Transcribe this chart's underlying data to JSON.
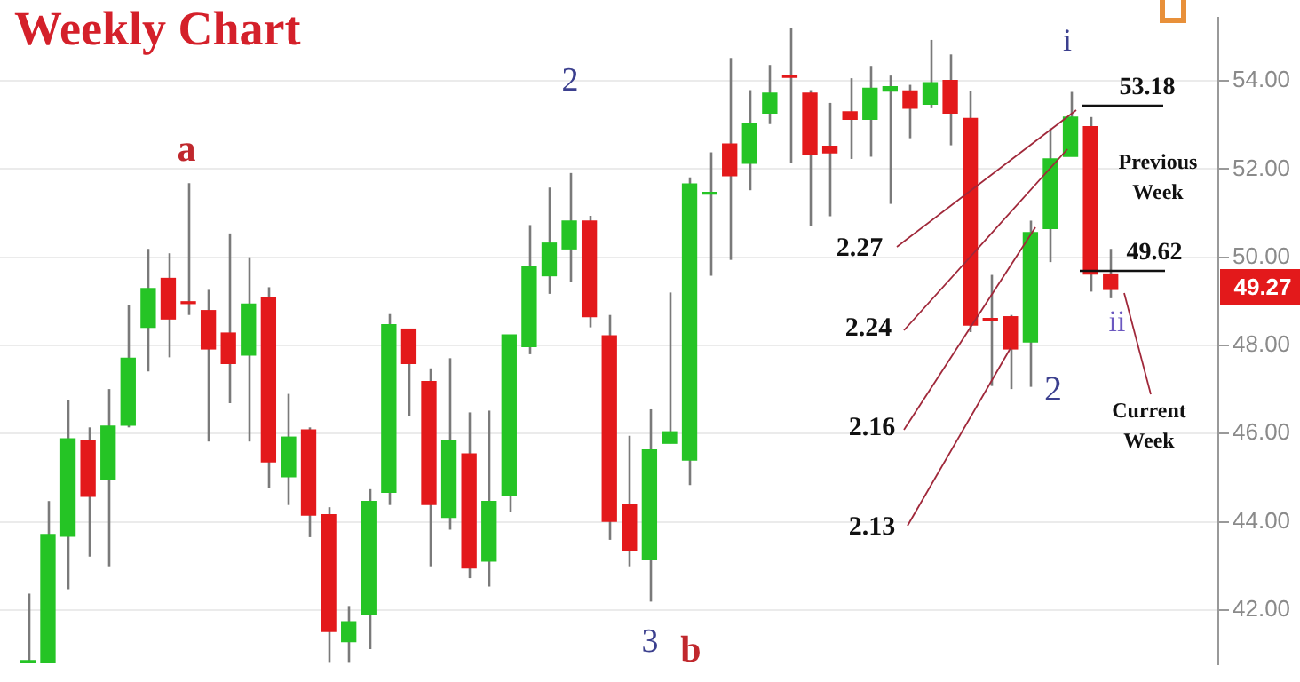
{
  "chart_data": {
    "type": "candlestick",
    "title": "Weekly Chart",
    "categories": [
      null,
      null,
      null,
      null,
      null,
      null,
      null,
      null,
      null,
      null,
      null,
      null,
      null,
      null,
      null,
      null,
      null,
      null,
      null,
      null,
      null,
      null,
      null,
      null,
      null,
      null,
      null,
      null,
      null,
      null,
      null,
      null,
      null,
      null,
      null,
      null,
      null,
      null,
      null,
      null,
      null,
      null,
      null,
      null,
      null,
      null,
      null,
      null,
      null,
      null,
      null,
      null,
      null,
      null,
      null
    ],
    "ohlc": [
      [
        40.8,
        42.37,
        40.8,
        40.85
      ],
      [
        40.8,
        44.47,
        40.8,
        43.71
      ],
      [
        43.67,
        46.75,
        42.47,
        45.88
      ],
      [
        45.85,
        46.14,
        43.21,
        44.58
      ],
      [
        44.97,
        47.01,
        42.99,
        46.17
      ],
      [
        46.19,
        48.92,
        46.14,
        47.71
      ],
      [
        48.41,
        50.19,
        47.41,
        49.29
      ],
      [
        49.52,
        50.09,
        47.73,
        48.6
      ],
      [
        48.99,
        51.68,
        48.69,
        48.95
      ],
      [
        48.79,
        49.26,
        45.82,
        47.92
      ],
      [
        48.28,
        50.54,
        46.69,
        47.59
      ],
      [
        47.78,
        50.0,
        45.82,
        48.94
      ],
      [
        49.09,
        49.32,
        44.76,
        45.36
      ],
      [
        45.02,
        46.9,
        44.38,
        45.92
      ],
      [
        46.08,
        46.14,
        43.65,
        44.15
      ],
      [
        44.16,
        44.33,
        40.8,
        41.51
      ],
      [
        41.28,
        42.09,
        40.8,
        41.73
      ],
      [
        41.91,
        44.74,
        41.11,
        44.46
      ],
      [
        44.67,
        48.71,
        44.38,
        48.47
      ],
      [
        48.37,
        48.37,
        46.39,
        47.59
      ],
      [
        47.18,
        47.48,
        42.99,
        44.39
      ],
      [
        44.1,
        47.71,
        43.82,
        45.83
      ],
      [
        45.54,
        46.48,
        42.72,
        42.95
      ],
      [
        43.11,
        46.52,
        42.53,
        44.46
      ],
      [
        44.6,
        48.24,
        44.23,
        48.24
      ],
      [
        47.97,
        50.73,
        47.8,
        49.8
      ],
      [
        49.58,
        51.58,
        49.17,
        50.32
      ],
      [
        50.19,
        51.91,
        49.45,
        50.82
      ],
      [
        50.82,
        50.94,
        48.41,
        48.65
      ],
      [
        48.22,
        48.69,
        43.59,
        44.01
      ],
      [
        44.39,
        45.95,
        42.99,
        43.34
      ],
      [
        43.14,
        46.55,
        42.19,
        45.63
      ],
      [
        45.78,
        49.2,
        45.78,
        46.04
      ],
      [
        45.4,
        51.81,
        44.83,
        51.66
      ],
      [
        51.43,
        52.38,
        49.58,
        51.47
      ],
      [
        52.57,
        54.52,
        49.94,
        51.85
      ],
      [
        52.13,
        53.79,
        51.52,
        53.02
      ],
      [
        53.27,
        54.36,
        53.02,
        53.72
      ],
      [
        54.12,
        55.21,
        52.13,
        54.08
      ],
      [
        53.72,
        53.79,
        50.7,
        52.33
      ],
      [
        52.52,
        53.5,
        50.93,
        52.37
      ],
      [
        53.3,
        54.06,
        52.23,
        53.13
      ],
      [
        53.13,
        54.34,
        52.28,
        53.83
      ],
      [
        53.77,
        54.12,
        51.21,
        53.87
      ],
      [
        53.77,
        53.91,
        52.7,
        53.38
      ],
      [
        53.47,
        54.93,
        53.38,
        53.96
      ],
      [
        54.01,
        54.6,
        52.54,
        53.27
      ],
      [
        53.15,
        53.78,
        48.3,
        48.46
      ],
      [
        48.61,
        49.6,
        47.08,
        48.57
      ],
      [
        48.65,
        48.69,
        47.01,
        47.92
      ],
      [
        48.08,
        50.83,
        47.06,
        50.56
      ],
      [
        50.65,
        52.92,
        49.89,
        52.23
      ],
      [
        52.29,
        53.75,
        52.29,
        53.18
      ],
      [
        52.96,
        53.18,
        49.22,
        49.62
      ],
      [
        49.62,
        50.19,
        49.07,
        49.27
      ]
    ],
    "colors": [
      "#25c425",
      "#25c425",
      "#25c425",
      "#e3191b",
      "#25c425",
      "#25c425",
      "#25c425",
      "#e3191b",
      "#e3191b",
      "#e3191b",
      "#e3191b",
      "#25c425",
      "#e3191b",
      "#25c425",
      "#e3191b",
      "#e3191b",
      "#25c425",
      "#25c425",
      "#25c425",
      "#e3191b",
      "#e3191b",
      "#25c425",
      "#e3191b",
      "#25c425",
      "#25c425",
      "#25c425",
      "#25c425",
      "#25c425",
      "#e3191b",
      "#e3191b",
      "#e3191b",
      "#25c425",
      "#25c425",
      "#25c425",
      "#25c425",
      "#e3191b",
      "#25c425",
      "#25c425",
      "#e3191b",
      "#e3191b",
      "#e3191b",
      "#e3191b",
      "#25c425",
      "#25c425",
      "#e3191b",
      "#25c425",
      "#e3191b",
      "#e3191b",
      "#e3191b",
      "#e3191b",
      "#25c425",
      "#25c425",
      "#25c425",
      "#e3191b",
      "#e3191b"
    ],
    "ylim": [
      40.76,
      55.44
    ],
    "yticks": [
      {
        "value": 42,
        "label": "42.00"
      },
      {
        "value": 44,
        "label": "44.00"
      },
      {
        "value": 46,
        "label": "46.00"
      },
      {
        "value": 48,
        "label": "48.00"
      },
      {
        "value": 50,
        "label": "50.00"
      },
      {
        "value": 52,
        "label": "52.00"
      },
      {
        "value": 54,
        "label": "54.00"
      }
    ],
    "tick_labels": "y",
    "grid": "y",
    "legend": false,
    "annotations": [
      "a",
      "2",
      "3",
      "b",
      "i",
      "2",
      "ii",
      "2.27",
      "2.24",
      "2.16",
      "2.13",
      "53.18",
      "49.62",
      "Previous Week",
      "Current Week",
      "49.27"
    ]
  }
}
